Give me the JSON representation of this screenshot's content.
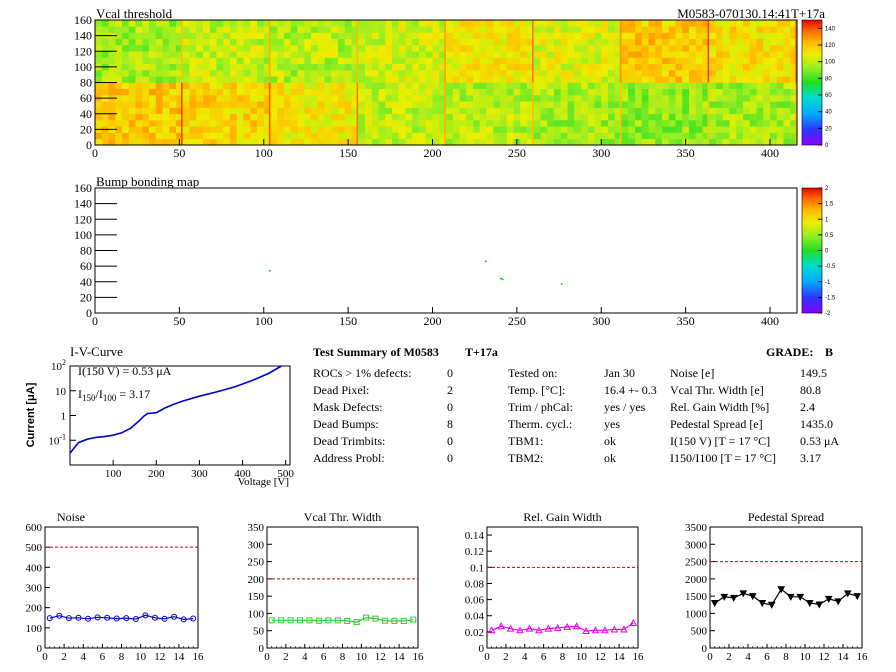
{
  "header": {
    "map1_title": "Vcal threshold",
    "module_label": "M0583-070130.14:41T+17a",
    "map2_title": "Bump bonding map"
  },
  "colors": {
    "noise": "#0000cc",
    "vcal": "#33cc33",
    "gain": "#ee00ee",
    "pedestal": "#000000",
    "limit": "#cc0000"
  },
  "chart_data": [
    {
      "type": "heatmap",
      "title": "Vcal threshold",
      "xlim": [
        0,
        416
      ],
      "ylim": [
        0,
        160
      ],
      "xticks": [
        0,
        50,
        100,
        150,
        200,
        250,
        300,
        350,
        400
      ],
      "yticks": [
        0,
        20,
        40,
        60,
        80,
        100,
        120,
        140,
        160
      ],
      "colorbar": {
        "min": 0,
        "max": 150,
        "ticks": [
          0,
          20,
          40,
          60,
          80,
          100,
          120,
          140
        ]
      },
      "roc_mean_values": {
        "top_row": [
          95,
          100,
          98,
          102,
          110,
          105,
          118,
          113
        ],
        "bottom_row": [
          118,
          115,
          110,
          100,
          98,
          95,
          92,
          95
        ]
      }
    },
    {
      "type": "heatmap",
      "title": "Bump bonding map",
      "xlim": [
        0,
        416
      ],
      "ylim": [
        0,
        160
      ],
      "xticks": [
        0,
        50,
        100,
        150,
        200,
        250,
        300,
        350,
        400
      ],
      "yticks": [
        0,
        20,
        40,
        60,
        80,
        100,
        120,
        140,
        160
      ],
      "colorbar": {
        "min": -2,
        "max": 2,
        "ticks": [
          "-2",
          "-1.5",
          "-1",
          "-0.5",
          "0",
          "0.5",
          "1",
          "1.5",
          "2"
        ]
      },
      "points": [
        [
          103,
          55
        ],
        [
          231,
          67
        ],
        [
          240,
          45
        ],
        [
          241,
          44
        ],
        [
          276,
          38
        ]
      ]
    },
    {
      "type": "line",
      "title": "I-V-Curve",
      "xlabel": "Voltage [V]",
      "ylabel": "Current [μA]",
      "yscale": "log",
      "xlim": [
        0,
        510
      ],
      "ylim": [
        0.01,
        100
      ],
      "xticks": [
        100,
        200,
        300,
        400,
        500
      ],
      "x": [
        0,
        10,
        20,
        40,
        60,
        80,
        100,
        120,
        140,
        160,
        170,
        180,
        200,
        220,
        240,
        260,
        300,
        340,
        380,
        420,
        460,
        490
      ],
      "y": [
        0.03,
        0.05,
        0.08,
        0.11,
        0.13,
        0.14,
        0.16,
        0.2,
        0.3,
        0.6,
        0.9,
        1.2,
        1.3,
        2.0,
        2.8,
        3.8,
        6.0,
        9.0,
        14,
        25,
        50,
        100
      ],
      "annotations": {
        "line1": "I(150 V) = 0.53 μA",
        "line2_prefix": "I",
        "line2_sub1": "150",
        "line2_mid": "/I",
        "line2_sub2": "100",
        "line2_rest": "=  3.17"
      }
    },
    {
      "type": "line",
      "title": "Noise",
      "xlim": [
        0,
        16
      ],
      "ylim": [
        0,
        600
      ],
      "xticks": [
        0,
        2,
        4,
        6,
        8,
        10,
        12,
        14,
        16
      ],
      "yticks": [
        0,
        100,
        200,
        300,
        400,
        500,
        600
      ],
      "limit": 500,
      "x": [
        0.5,
        1.5,
        2.5,
        3.5,
        4.5,
        5.5,
        6.5,
        7.5,
        8.5,
        9.5,
        10.5,
        11.5,
        12.5,
        13.5,
        14.5,
        15.5
      ],
      "y": [
        148,
        160,
        148,
        150,
        145,
        152,
        150,
        146,
        148,
        144,
        162,
        150,
        145,
        155,
        142,
        146
      ]
    },
    {
      "type": "line",
      "title": "Vcal Thr. Width",
      "xlim": [
        0,
        16
      ],
      "ylim": [
        0,
        350
      ],
      "xticks": [
        0,
        2,
        4,
        6,
        8,
        10,
        12,
        14,
        16
      ],
      "yticks": [
        0,
        50,
        100,
        150,
        200,
        250,
        300,
        350
      ],
      "limit": 200,
      "x": [
        0.5,
        1.5,
        2.5,
        3.5,
        4.5,
        5.5,
        6.5,
        7.5,
        8.5,
        9.5,
        10.5,
        11.5,
        12.5,
        13.5,
        14.5,
        15.5
      ],
      "y": [
        80,
        80,
        80,
        80,
        80,
        79,
        80,
        80,
        78,
        75,
        88,
        85,
        79,
        78,
        78,
        82
      ]
    },
    {
      "type": "line",
      "title": "Rel. Gain Width",
      "xlim": [
        0,
        16
      ],
      "ylim": [
        0,
        0.15
      ],
      "xticks": [
        0,
        2,
        4,
        6,
        8,
        10,
        12,
        14,
        16
      ],
      "yticks": [
        0,
        0.02,
        0.04,
        0.06,
        0.08,
        0.1,
        0.12,
        0.14
      ],
      "ytick_labels": [
        "0",
        "0.02",
        "0.04",
        "0.06",
        "0.08",
        "0.1",
        "0.12",
        "0.14"
      ],
      "limit": 0.1,
      "x": [
        0.5,
        1.5,
        2.5,
        3.5,
        4.5,
        5.5,
        6.5,
        7.5,
        8.5,
        9.5,
        10.5,
        11.5,
        12.5,
        13.5,
        14.5,
        15.5
      ],
      "y": [
        0.022,
        0.027,
        0.024,
        0.022,
        0.024,
        0.022,
        0.024,
        0.025,
        0.026,
        0.027,
        0.021,
        0.022,
        0.022,
        0.023,
        0.023,
        0.031
      ]
    },
    {
      "type": "line",
      "title": "Pedestal Spread",
      "xlim": [
        0,
        16
      ],
      "ylim": [
        0,
        3500
      ],
      "xticks": [
        0,
        2,
        4,
        6,
        8,
        10,
        12,
        14,
        16
      ],
      "yticks": [
        0,
        500,
        1000,
        1500,
        2000,
        2500,
        3000,
        3500
      ],
      "limit": 2500,
      "x": [
        0.5,
        1.5,
        2.5,
        3.5,
        4.5,
        5.5,
        6.5,
        7.5,
        8.5,
        9.5,
        10.5,
        11.5,
        12.5,
        13.5,
        14.5,
        15.5
      ],
      "y": [
        1300,
        1480,
        1450,
        1580,
        1500,
        1300,
        1250,
        1700,
        1480,
        1480,
        1300,
        1260,
        1420,
        1350,
        1580,
        1500
      ]
    }
  ],
  "summary": {
    "title": "Test Summary of M0583",
    "temp_tag": "T+17a",
    "grade_label": "GRADE:",
    "grade": "B",
    "col1": [
      {
        "label": "ROCs > 1% defects:",
        "value": "0"
      },
      {
        "label": "Dead Pixel:",
        "value": "2"
      },
      {
        "label": "Mask Defects:",
        "value": "0"
      },
      {
        "label": "Dead Bumps:",
        "value": "8"
      },
      {
        "label": "Dead Trimbits:",
        "value": "0"
      },
      {
        "label": "Address Probl:",
        "value": "0"
      }
    ],
    "col2": [
      {
        "label": "Tested on:",
        "value": "Jan 30"
      },
      {
        "label": "Temp. [°C]:",
        "value": "16.4 +- 0.3"
      },
      {
        "label": "Trim / phCal:",
        "value": "yes / yes"
      },
      {
        "label": "Therm. cycl.:",
        "value": "yes"
      },
      {
        "label": "TBM1:",
        "value": "ok"
      },
      {
        "label": "TBM2:",
        "value": "ok"
      }
    ],
    "col3": [
      {
        "label": "Noise [e]",
        "value": "149.5"
      },
      {
        "label": "Vcal Thr. Width [e]",
        "value": "80.8"
      },
      {
        "label": "Rel. Gain Width [%]",
        "value": "2.4"
      },
      {
        "label": "Pedestal Spread [e]",
        "value": "1435.0"
      },
      {
        "label": "I(150 V) [T = 17 °C]",
        "value": "0.53 μA"
      },
      {
        "label": "I150/I100  [T = 17 °C]",
        "value": "3.17"
      }
    ]
  }
}
